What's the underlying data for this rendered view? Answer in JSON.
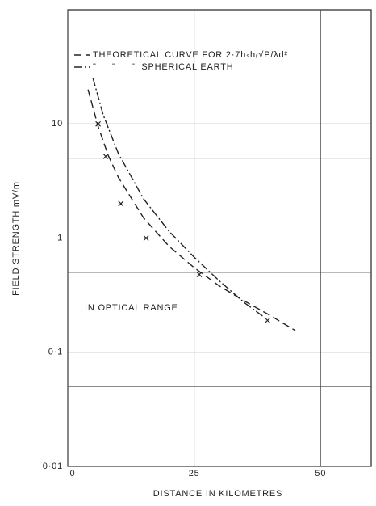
{
  "chart_data": {
    "type": "line",
    "xlabel": "DISTANCE IN KILOMETRES",
    "ylabel": "FIELD STRENGTH mV/m",
    "annotation": "IN OPTICAL RANGE",
    "log_y": true,
    "grid": true,
    "xlim": [
      0,
      60
    ],
    "ylim": [
      0.01,
      100
    ],
    "xticks": [
      0,
      25,
      50
    ],
    "yticks": [
      {
        "value": 0.01,
        "label": "0·01"
      },
      {
        "value": 0.1,
        "label": "0·1"
      },
      1,
      10
    ],
    "y_minor_grid": [
      0.05,
      0.5,
      5,
      50
    ],
    "series": [
      {
        "name": "THEORETICAL CURVE FOR 2·7hₛhᵣ√P/λd²",
        "color": "#222",
        "dash": "9 5",
        "x": [
          4,
          6,
          8,
          10,
          15,
          20,
          25,
          30,
          35,
          40,
          45
        ],
        "values": [
          20,
          9.5,
          5.3,
          3.4,
          1.5,
          0.85,
          0.55,
          0.38,
          0.28,
          0.21,
          0.155
        ]
      },
      {
        "name": "\"     \"     \"  SPHERICAL EARTH",
        "color": "#222",
        "dash": "10 3 2 3",
        "x": [
          5,
          7,
          10,
          15,
          20,
          25,
          30,
          35,
          39
        ],
        "values": [
          25,
          12,
          5.5,
          2.2,
          1.15,
          0.68,
          0.42,
          0.27,
          0.2
        ]
      }
    ],
    "points": {
      "x": [
        6,
        7.5,
        10.5,
        15.5,
        26,
        39.5
      ],
      "values": [
        10,
        5.2,
        2,
        1,
        0.48,
        0.19
      ]
    }
  }
}
